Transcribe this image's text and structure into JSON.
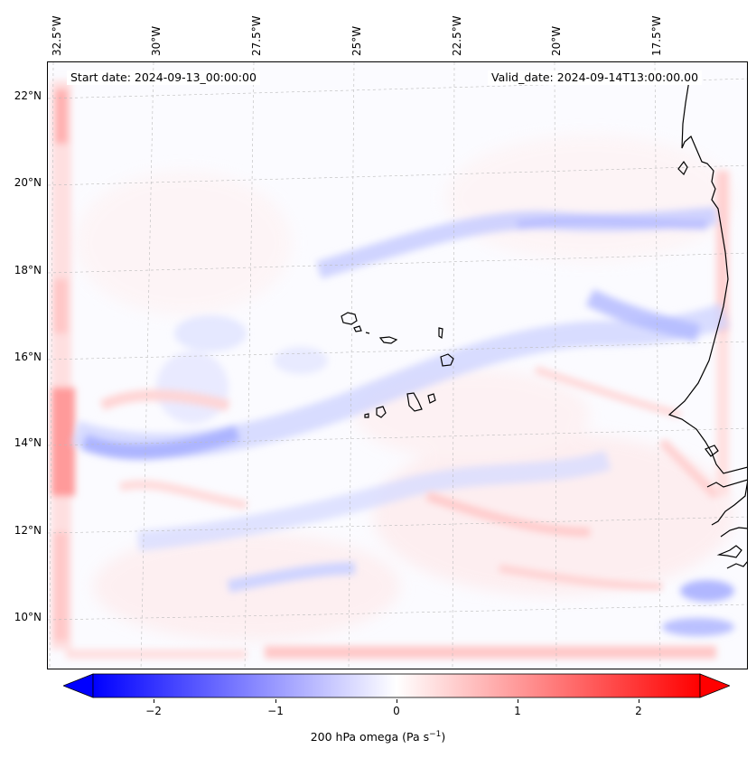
{
  "map": {
    "start_date": "Start date: 2024-09-13_00:00:00",
    "valid_date": "Valid_date: 2024-09-14T13:00:00.00",
    "lon_labels": [
      "32.5°W",
      "30°W",
      "27.5°W",
      "25°W",
      "22.5°W",
      "20°W",
      "17.5°W"
    ],
    "lat_labels": [
      "22°N",
      "20°N",
      "18°N",
      "16°N",
      "14°N",
      "12°N",
      "10°N"
    ],
    "colors": {
      "negative": "#0000ff",
      "zero": "#ffffff",
      "positive": "#ff0000",
      "coastline": "#000000",
      "gridline": "#bbbbbb"
    }
  },
  "colorbar": {
    "ticks": [
      "−2",
      "−1",
      "0",
      "1",
      "2"
    ],
    "tick_values": [
      -2,
      -1,
      0,
      1,
      2
    ],
    "range": [
      -2.6,
      2.6
    ],
    "label": "200 hPa omega (Pa s",
    "label_sup": "−1",
    "label_end": ")"
  }
}
